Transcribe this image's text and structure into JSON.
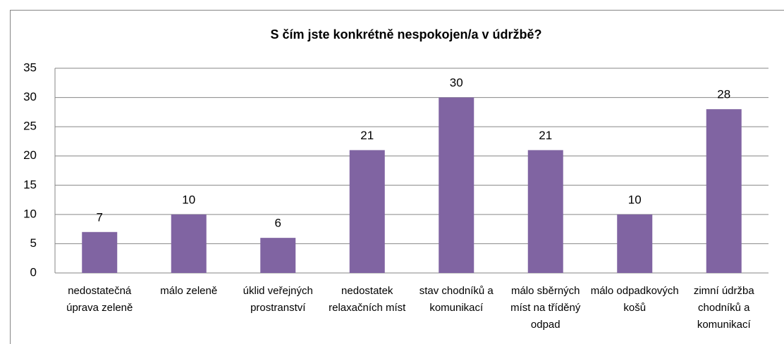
{
  "chart_data": {
    "type": "bar",
    "title": "S čím jste konkrétně nespokojen/a v údržbě?",
    "categories": [
      "nedostatečná úprava zeleně",
      "málo zeleně",
      "úklid veřejných prostranství",
      "nedostatek relaxačních míst",
      "stav chodníků a komunikací",
      "málo sběrných míst na tříděný odpad",
      "málo odpadkových košů",
      "zimní údržba chodníků a komunikací"
    ],
    "values": [
      7,
      10,
      6,
      21,
      30,
      21,
      10,
      28
    ],
    "color": "#8064a2",
    "ylim": [
      0,
      35
    ],
    "yticks": [
      0,
      5,
      10,
      15,
      20,
      25,
      30,
      35
    ],
    "grid": true
  }
}
